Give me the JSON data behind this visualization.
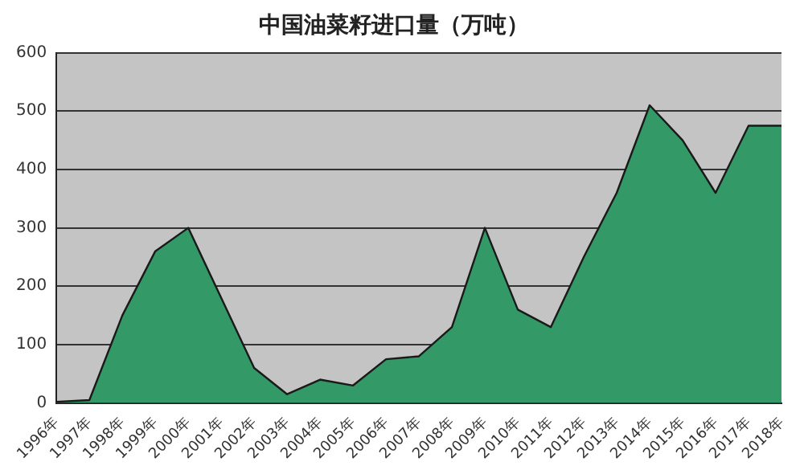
{
  "chart_data": {
    "type": "area",
    "title": "中国油菜籽进口量（万吨）",
    "categories": [
      "1996年",
      "1997年",
      "1998年",
      "1999年",
      "2000年",
      "2001年",
      "2002年",
      "2003年",
      "2004年",
      "2005年",
      "2006年",
      "2007年",
      "2008年",
      "2009年",
      "2010年",
      "2011年",
      "2012年",
      "2013年",
      "2014年",
      "2015年",
      "2016年",
      "2017年",
      "2018年"
    ],
    "values": [
      2,
      5,
      150,
      260,
      300,
      180,
      60,
      15,
      40,
      30,
      75,
      80,
      130,
      300,
      160,
      130,
      250,
      360,
      510,
      450,
      360,
      475,
      475
    ],
    "color": "#339966",
    "ylim": [
      0,
      600
    ],
    "yticks": [
      0,
      100,
      200,
      300,
      400,
      500,
      600
    ],
    "grid": "y",
    "legend": false
  }
}
